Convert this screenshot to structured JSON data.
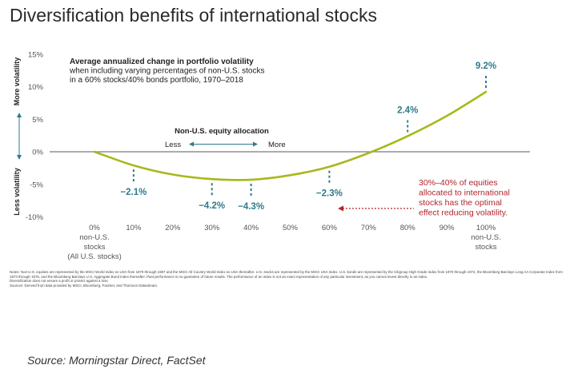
{
  "title": "Diversification benefits of international stocks",
  "chart_data": {
    "type": "line",
    "subtitle_lines": [
      "Average annualized change in portfolio volatility",
      "when including varying percentages of non-U.S. stocks",
      "in a 60% stocks/40% bonds portfolio, 1970–2018"
    ],
    "ylabel_top": "More volatility",
    "ylabel_bottom": "Less volatility",
    "ylim": [
      -10,
      15
    ],
    "y_ticks": [
      15,
      10,
      5,
      0,
      -5,
      -10
    ],
    "y_tick_labels": [
      "15%",
      "10%",
      "5%",
      "0%",
      "-5%",
      "-10%"
    ],
    "x": [
      0,
      10,
      20,
      30,
      40,
      50,
      60,
      70,
      80,
      90,
      100
    ],
    "x_tick_labels": [
      "0%",
      "10%",
      "20%",
      "30%",
      "40%",
      "50%",
      "60%",
      "70%",
      "80%",
      "90%",
      "100%"
    ],
    "x_first_sublabel": [
      "non-U.S.",
      "stocks",
      "(All U.S. stocks)"
    ],
    "x_last_sublabel": [
      "non-U.S.",
      "stocks"
    ],
    "series": [
      {
        "values": [
          0,
          -2.1,
          -3.5,
          -4.2,
          -4.3,
          -3.6,
          -2.3,
          -0.2,
          2.4,
          5.5,
          9.2
        ],
        "color": "#a8b81c"
      }
    ],
    "data_labels": [
      {
        "x": 10,
        "y": -2.1,
        "text": "−2.1%",
        "pos": "below"
      },
      {
        "x": 30,
        "y": -4.2,
        "text": "−4.2%",
        "pos": "below"
      },
      {
        "x": 40,
        "y": -4.3,
        "text": "−4.3%",
        "pos": "below"
      },
      {
        "x": 60,
        "y": -2.3,
        "text": "−2.3%",
        "pos": "below"
      },
      {
        "x": 80,
        "y": 2.4,
        "text": "2.4%",
        "pos": "above"
      },
      {
        "x": 100,
        "y": 9.2,
        "text": "9.2%",
        "pos": "above"
      }
    ],
    "allocation_title": "Non-U.S. equity allocation",
    "allocation_less": "Less",
    "allocation_more": "More",
    "annotation_lines": [
      "30%–40% of equities",
      "allocated to international",
      "stocks has the optimal",
      "effect reducing volatility."
    ],
    "colors": {
      "line": "#a8b81c",
      "label": "#2e7a8c",
      "annotation": "#b0262c",
      "axis": "#7a7a7a",
      "ylabel": "#222222",
      "tick": "#555555"
    }
  },
  "notes": [
    "Notes: Non-U.S. equities are represented by the MSCI World Index ex USA from 1970 through 1987 and the MSCI All Country World Index ex USA thereafter. U.S. stocks are represented by the MSCI USA Index. U.S. bonds are represented by the Citigroup High Grade Index from 1970 through 1972, the Bloomberg Barclays Long AA Corporate Index from 1973 through 1975, and the Bloomberg Barclays U.S. Aggregate Bond Index thereafter. Past performance is no guarantee of future results. The performance of an index is not an exact representation of any particular investment, as you cannot invest directly in an index.",
    "Diversification does not ensure a profit or protect against a loss.",
    "Sources: Derived from data provided by MSCI, Bloomberg, FactSet, and Thomson Datastream."
  ],
  "source": "Source:  Morningstar Direct, FactSet"
}
